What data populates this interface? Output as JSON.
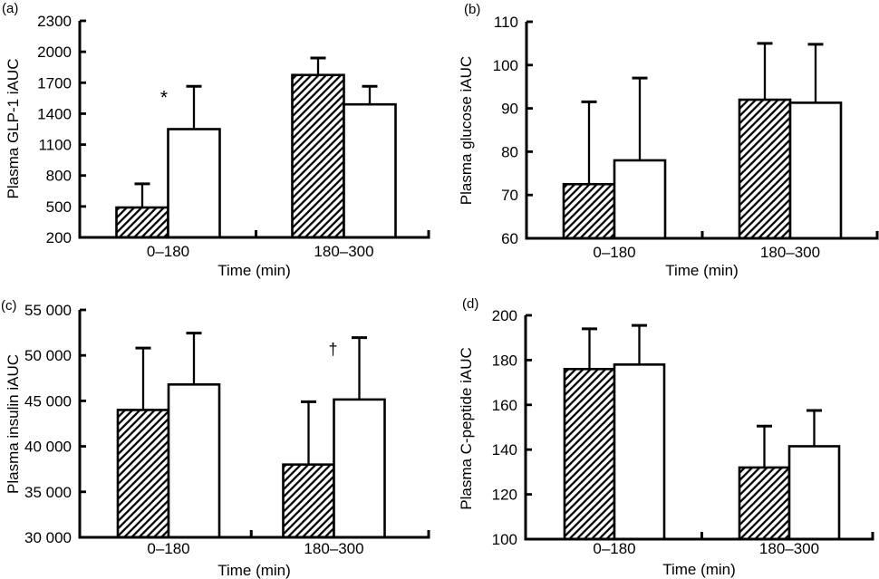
{
  "figure": {
    "background_color": "#ffffff",
    "ink_color": "#000000",
    "description": "Four-panel bar chart figure with hatched and open bars plus SE error bars"
  },
  "chart_data": [
    {
      "panel_letter": "(a)",
      "type": "bar",
      "ylabel": "Plasma GLP-1 iAUC",
      "xlabel": "Time (min)",
      "categories": [
        "0–180",
        "180–300"
      ],
      "ylim": [
        200,
        2300
      ],
      "yticks": [
        200,
        500,
        800,
        1100,
        1400,
        1700,
        2000,
        2300
      ],
      "ytick_labels": [
        "200",
        "500",
        "800",
        "1100",
        "1400",
        "1700",
        "2000",
        "2300"
      ],
      "grid": false,
      "legend": "none",
      "series": [
        {
          "name": "hatched-bar",
          "style": "hatched",
          "values": [
            490,
            1775
          ],
          "error_tops": [
            720,
            1940
          ]
        },
        {
          "name": "open-bar",
          "style": "open",
          "values": [
            1250,
            1490
          ],
          "error_tops": [
            1665,
            1665
          ]
        }
      ],
      "annotations": [
        {
          "text": "*",
          "category_index": 0,
          "series": "open"
        }
      ]
    },
    {
      "panel_letter": "(b)",
      "type": "bar",
      "ylabel": "Plasma glucose iAUC",
      "xlabel": "Time (min)",
      "categories": [
        "0–180",
        "180–300"
      ],
      "ylim": [
        60,
        110
      ],
      "yticks": [
        60,
        70,
        80,
        90,
        100,
        110
      ],
      "ytick_labels": [
        "60",
        "70",
        "80",
        "90",
        "100",
        "110"
      ],
      "grid": false,
      "legend": "none",
      "series": [
        {
          "name": "hatched-bar",
          "style": "hatched",
          "values": [
            72.5,
            92
          ],
          "error_tops": [
            91.5,
            105
          ]
        },
        {
          "name": "open-bar",
          "style": "open",
          "values": [
            78,
            91.3
          ],
          "error_tops": [
            97,
            104.8
          ]
        }
      ],
      "annotations": []
    },
    {
      "panel_letter": "(c)",
      "type": "bar",
      "ylabel": "Plasma insulin iAUC",
      "xlabel": "Time (min)",
      "categories": [
        "0–180",
        "180–300"
      ],
      "ylim": [
        30000,
        55000
      ],
      "yticks": [
        30000,
        35000,
        40000,
        45000,
        50000,
        55000
      ],
      "ytick_labels": [
        "30 000",
        "35 000",
        "40 000",
        "45 000",
        "50 000",
        "55 000"
      ],
      "grid": false,
      "legend": "none",
      "series": [
        {
          "name": "hatched-bar",
          "style": "hatched",
          "values": [
            44000,
            38000
          ],
          "error_tops": [
            50800,
            44900
          ]
        },
        {
          "name": "open-bar",
          "style": "open",
          "values": [
            46800,
            45150
          ],
          "error_tops": [
            52450,
            51950
          ]
        }
      ],
      "annotations": [
        {
          "text": "†",
          "category_index": 1,
          "series": "open"
        }
      ]
    },
    {
      "panel_letter": "(d)",
      "type": "bar",
      "ylabel": "Plasma C-peptide iAUC",
      "xlabel": "Time (min)",
      "categories": [
        "0–180",
        "180–300"
      ],
      "ylim": [
        100,
        200
      ],
      "yticks": [
        100,
        120,
        140,
        160,
        180,
        200
      ],
      "ytick_labels": [
        "100",
        "120",
        "140",
        "160",
        "180",
        "200"
      ],
      "grid": false,
      "legend": "none",
      "series": [
        {
          "name": "hatched-bar",
          "style": "hatched",
          "values": [
            176,
            132
          ],
          "error_tops": [
            194,
            150.5
          ]
        },
        {
          "name": "open-bar",
          "style": "open",
          "values": [
            178,
            141.5
          ],
          "error_tops": [
            195.5,
            157.5
          ]
        }
      ],
      "annotations": []
    }
  ]
}
